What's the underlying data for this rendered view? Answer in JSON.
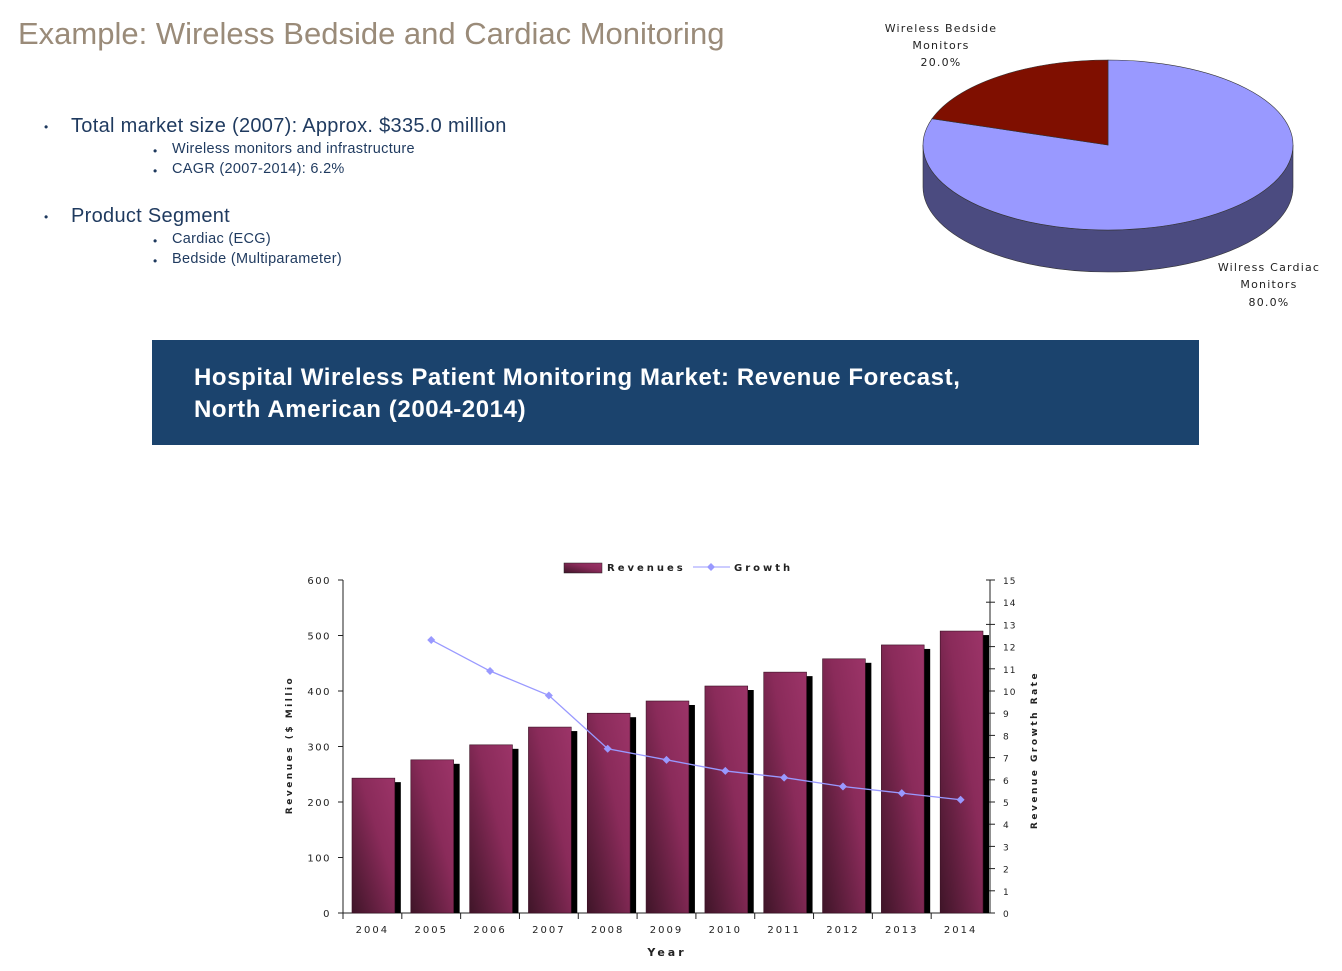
{
  "title": "Example: Wireless Bedside and Cardiac Monitoring",
  "bullets": [
    {
      "text": "Total market size (2007): Approx. $335.0 million",
      "sub": [
        "Wireless monitors and infrastructure",
        "CAGR (2007-2014): 6.2%"
      ]
    },
    {
      "text": "Product Segment",
      "sub": [
        "Cardiac (ECG)",
        "Bedside (Multiparameter)"
      ]
    }
  ],
  "banner": {
    "line1": "Hospital Wireless Patient Monitoring Market: Revenue Forecast,",
    "line2": "North American (2004-2014)"
  },
  "chart_data": [
    {
      "type": "pie",
      "slices": [
        {
          "label_line1": "Wireless Bedside",
          "label_line2": "Monitors",
          "pct_label": "20.0%",
          "value": 20.0,
          "color": "#7f0f00"
        },
        {
          "label_line1": "Wilress Cardiac",
          "label_line2": "Monitors",
          "pct_label": "80.0%",
          "value": 80.0,
          "color": "#9999ff"
        }
      ]
    },
    {
      "type": "bar",
      "xlabel": "Year",
      "ylabel": "Revenues ($ Millio",
      "y2label": "Revenue Growth Rate",
      "legend": [
        "Revenues",
        "Growth"
      ],
      "legend_placement": "top",
      "categories": [
        "2004",
        "2005",
        "2006",
        "2007",
        "2008",
        "2009",
        "2010",
        "2011",
        "2012",
        "2013",
        "2014"
      ],
      "ylim": [
        0,
        600
      ],
      "yticks": [
        0,
        100,
        200,
        300,
        400,
        500,
        600
      ],
      "y2lim": [
        0,
        15
      ],
      "y2ticks": [
        0,
        1,
        2,
        3,
        4,
        5,
        6,
        7,
        8,
        9,
        10,
        11,
        12,
        13,
        14,
        15
      ],
      "series": [
        {
          "name": "Revenues",
          "type": "bar",
          "axis": "left",
          "color": "#8a2b5a",
          "values": [
            243,
            276,
            303,
            335,
            360,
            382,
            409,
            434,
            458,
            483,
            508
          ]
        },
        {
          "name": "Growth",
          "type": "line",
          "axis": "right",
          "color": "#9999ff",
          "values": [
            null,
            12.3,
            10.9,
            9.8,
            7.4,
            6.9,
            6.4,
            6.1,
            5.7,
            5.4,
            5.1
          ]
        }
      ]
    }
  ]
}
